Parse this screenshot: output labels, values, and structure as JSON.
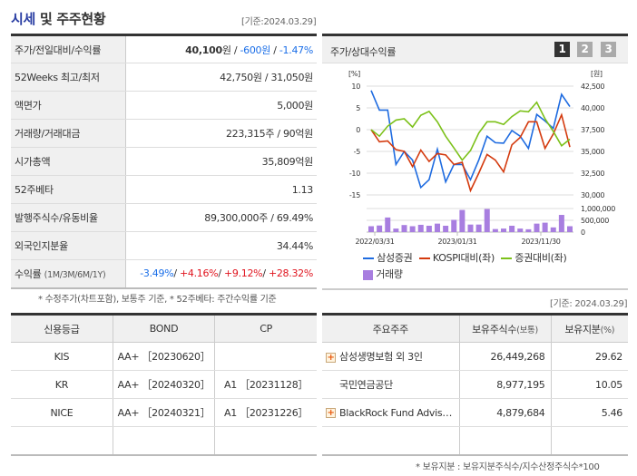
{
  "header": {
    "title_highlight": "시세",
    "title_rest": " 및 주주현황",
    "as_of": "[기준:2024.03.29]"
  },
  "info": {
    "rows": [
      {
        "label": "주가/전일대비/수익률"
      },
      {
        "label": "52Weeks 최고/최저",
        "value": "42,750원 / 31,050원"
      },
      {
        "label": "액면가",
        "value": "5,000원"
      },
      {
        "label": "거래량/거래대금",
        "value": "223,315주 / 90억원"
      },
      {
        "label": "시가총액",
        "value": "35,809억원"
      },
      {
        "label": "52주베타",
        "value": "1.13"
      },
      {
        "label": "발행주식수/유동비율",
        "value": "89,300,000주 / 69.49%"
      },
      {
        "label": "외국인지분율",
        "value": "34.44%"
      },
      {
        "label": "수익률",
        "sub": "(1M/3M/6M/1Y)"
      }
    ],
    "price": "40,100",
    "price_unit": "원",
    "change": "-600원",
    "change_pct": "-1.47%",
    "returns": [
      "-3.49%",
      "+4.16%",
      "+9.12%",
      "+28.32%"
    ],
    "footnote": "* 수정주가(차트포함), 보통주 기준, * 52주베타: 주간수익률 기준"
  },
  "chart": {
    "title": "주가/상대수익률",
    "pages": [
      "1",
      "2",
      "3"
    ],
    "active_page": "1"
  },
  "chart_data": {
    "type": "line",
    "left_axis": {
      "unit": "[%]",
      "ticks": [
        10,
        5,
        0,
        -5,
        -10,
        -15
      ],
      "range": [
        -15,
        10
      ]
    },
    "right_axis": {
      "unit": "[원]",
      "ticks": [
        "42,500",
        "40,000",
        "37,500",
        "35,000",
        "32,500",
        "30,000"
      ],
      "range": [
        30000,
        42500
      ]
    },
    "volume_axis": {
      "ticks": [
        "1,000,000",
        "500,000",
        "0"
      ],
      "range": [
        0,
        1000000
      ]
    },
    "x_ticks": [
      "2022/03/31",
      "2023/01/31",
      "2023/11/30"
    ],
    "series": [
      {
        "name": "삼성증권",
        "color": "#1e6be0",
        "values": [
          9,
          4.5,
          4.5,
          -8,
          -5,
          -7,
          -13.3,
          -11.5,
          -4.5,
          -12,
          -8,
          -8,
          -11.5,
          -7,
          -1.5,
          -3,
          -3.1,
          -0.2,
          -1.5,
          -4.3,
          3.5,
          2,
          0.3,
          8.1,
          5.3
        ]
      },
      {
        "name": "KOSPI대비(좌)",
        "color": "#d43a0e",
        "values": [
          0,
          -2.8,
          -2.6,
          -4.6,
          -5,
          -8.5,
          -4.7,
          -7.3,
          -5.5,
          -5.8,
          -8,
          -7.5,
          -14,
          -10,
          -5.7,
          -7,
          -9.7,
          -3.5,
          -1.8,
          1.8,
          1.8,
          -4.3,
          -1,
          3.4,
          -4
        ]
      },
      {
        "name": "증권대비(좌)",
        "color": "#7cc11a",
        "values": [
          0,
          -1.5,
          0.8,
          2.2,
          2.5,
          0.6,
          3.3,
          4.2,
          1.8,
          -1.5,
          -4.2,
          -7,
          -4.8,
          -0.8,
          1.8,
          1.8,
          1.2,
          3,
          4.3,
          4.1,
          6.3,
          2.5,
          -0.4,
          -3.7,
          -2.2
        ]
      }
    ],
    "volume": {
      "name": "거래량",
      "color": "#a87ee0",
      "values": [
        250000,
        280000,
        620000,
        150000,
        300000,
        250000,
        310000,
        270000,
        360000,
        270000,
        520000,
        940000,
        320000,
        320000,
        980000,
        130000,
        150000,
        270000,
        150000,
        120000,
        360000,
        400000,
        200000,
        730000,
        250000
      ]
    }
  },
  "ratings": {
    "headers": [
      "신용등급",
      "BOND",
      "CP"
    ],
    "rows": [
      [
        "KIS",
        "AA+ ［20230620］",
        ""
      ],
      [
        "KR",
        "AA+ ［20240320］",
        "A1 ［20231128］"
      ],
      [
        "NICE",
        "AA+ ［20240321］",
        "A1 ［20231226］"
      ],
      [
        "",
        "",
        ""
      ]
    ]
  },
  "shareholders": {
    "as_of": "[기준: 2024.03.29]",
    "headers": [
      "주요주주",
      "보유주식수",
      "(보통)",
      "보유지분",
      "(%)"
    ],
    "rows": [
      {
        "name": "삼성생명보험 외 3인",
        "shares": "26,449,268",
        "pct": "29.62",
        "expand": true
      },
      {
        "name": "국민연금공단",
        "shares": "8,977,195",
        "pct": "10.05",
        "expand": false
      },
      {
        "name": "BlackRock Fund Advis…",
        "shares": "4,879,684",
        "pct": "5.46",
        "expand": true
      }
    ],
    "footnote": "* 보유지분 : 보유지분주식수/지수산정주식수*100"
  }
}
